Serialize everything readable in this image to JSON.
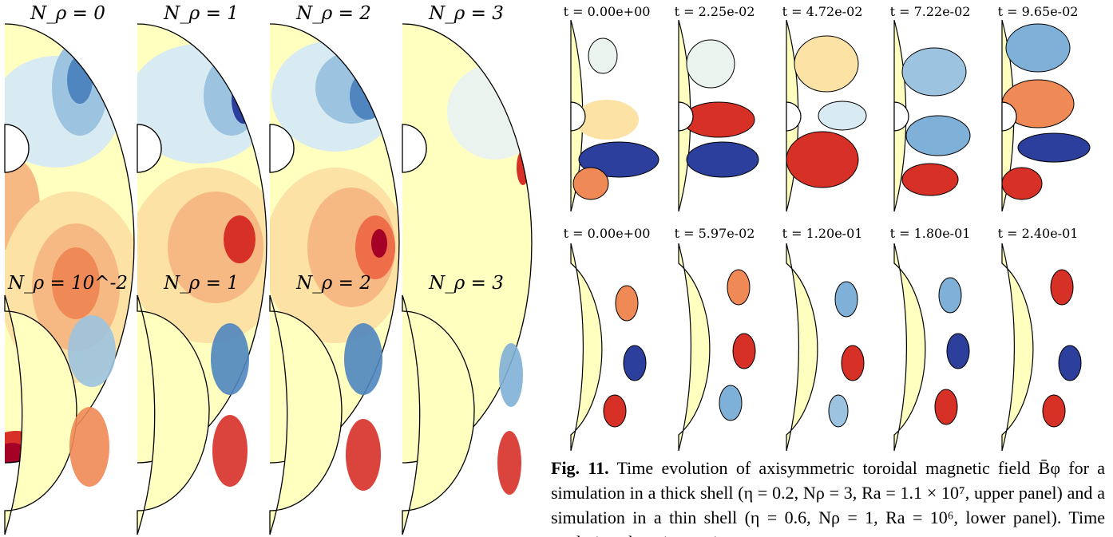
{
  "left_figure": {
    "top_row_labels": [
      "N_ρ = 0",
      "N_ρ = 1",
      "N_ρ = 2",
      "N_ρ = 3"
    ],
    "bottom_row_labels": [
      "N_ρ = 10^-2",
      "N_ρ = 1",
      "N_ρ = 2",
      "N_ρ = 3"
    ]
  },
  "right_figure": {
    "top_row_times": [
      "t = 0.00e+00",
      "t = 2.25e-02",
      "t = 4.72e-02",
      "t = 7.22e-02",
      "t = 9.65e-02"
    ],
    "bottom_row_times": [
      "t = 0.00e+00",
      "t = 5.97e-02",
      "t = 1.20e-01",
      "t = 1.80e-01",
      "t = 2.40e-01"
    ]
  },
  "caption": {
    "label": "Fig. 11.",
    "text": " Time evolution of axisymmetric toroidal magnetic field B̄φ for a simulation in a thick shell (η = 0.2, Nρ = 3, Ra = 1.1 × 10⁷, upper panel) and a simulation in a thin shell (η = 0.6, Nρ = 1, Ra = 10⁶, lower panel). Time evolution show increasing"
  },
  "colors": {
    "pale_yellow": "#ffffc0",
    "light_blue": "#d8eaf2",
    "mid_blue": "#7fb0d8",
    "dark_blue": "#2c3f9c",
    "light_orange": "#fde2a5",
    "mid_orange": "#f4a060",
    "dark_red": "#c41a26"
  }
}
